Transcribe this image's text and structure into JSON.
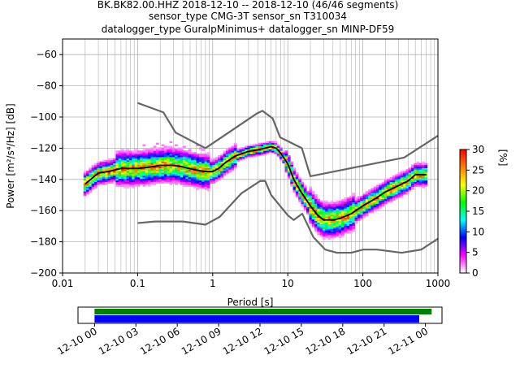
{
  "title": {
    "line1": "BK.BK82.00.HHZ   2018-12-10 -- 2018-12-10  (46/46 segments)",
    "line2": "sensor_type CMG-3T sensor_sn T310034",
    "line3": "datalogger_type GuralpMinimus+ datalogger_sn MINP-DF59"
  },
  "chart_data": [
    {
      "type": "heatmap",
      "xlabel": "Period [s]",
      "ylabel": "Power [m²/s⁴/Hz] [dB]",
      "xscale": "log",
      "xlim": [
        0.01,
        1000
      ],
      "ylim": [
        -200,
        -50
      ],
      "xtick_labels": [
        "0.01",
        "0.1",
        "1",
        "10",
        "100",
        "1000"
      ],
      "ytick_values": [
        -200,
        -180,
        -160,
        -140,
        -120,
        -100,
        -80,
        -60
      ],
      "grid": true,
      "colorbar": {
        "label": "[%]",
        "range": [
          0,
          30
        ],
        "tick_values": [
          0,
          5,
          10,
          15,
          20,
          25,
          30
        ],
        "colormap": [
          "#ffffff",
          "#ff00ff",
          "#0000ff",
          "#00ffff",
          "#00ff00",
          "#ffff00",
          "#ff8000",
          "#ff0000"
        ]
      },
      "series": [
        {
          "role": "mean",
          "color": "#000000",
          "points": [
            [
              0.02,
              -143
            ],
            [
              0.025,
              -139
            ],
            [
              0.03,
              -136
            ],
            [
              0.04,
              -135
            ],
            [
              0.06,
              -133
            ],
            [
              0.08,
              -133
            ],
            [
              0.1,
              -133
            ],
            [
              0.15,
              -132
            ],
            [
              0.2,
              -131
            ],
            [
              0.3,
              -131
            ],
            [
              0.4,
              -132
            ],
            [
              0.6,
              -134
            ],
            [
              0.8,
              -135
            ],
            [
              1.0,
              -135
            ],
            [
              1.2,
              -133
            ],
            [
              1.5,
              -129
            ],
            [
              2,
              -125
            ],
            [
              3,
              -122
            ],
            [
              4,
              -121
            ],
            [
              5,
              -120
            ],
            [
              6,
              -119
            ],
            [
              7,
              -120
            ],
            [
              8,
              -123
            ],
            [
              10,
              -130
            ],
            [
              12,
              -140
            ],
            [
              15,
              -148
            ],
            [
              20,
              -157
            ],
            [
              25,
              -163
            ],
            [
              30,
              -166
            ],
            [
              40,
              -166
            ],
            [
              50,
              -165
            ],
            [
              70,
              -162
            ],
            [
              100,
              -157
            ],
            [
              150,
              -152
            ],
            [
              200,
              -148
            ],
            [
              300,
              -144
            ],
            [
              400,
              -141
            ],
            [
              500,
              -137
            ],
            [
              700,
              -137
            ]
          ]
        },
        {
          "role": "upper-noise-model",
          "color": "#666666",
          "points": [
            [
              0.1,
              -91
            ],
            [
              0.22,
              -97
            ],
            [
              0.32,
              -110
            ],
            [
              0.8,
              -120
            ],
            [
              3.8,
              -98
            ],
            [
              4.6,
              -96
            ],
            [
              6.3,
              -101
            ],
            [
              7.9,
              -113
            ],
            [
              15.4,
              -120
            ],
            [
              20,
              -138
            ],
            [
              354.8,
              -126
            ],
            [
              1000,
              -112
            ]
          ]
        },
        {
          "role": "lower-noise-model",
          "color": "#666666",
          "points": [
            [
              0.1,
              -168
            ],
            [
              0.17,
              -167
            ],
            [
              0.4,
              -167
            ],
            [
              0.8,
              -169
            ],
            [
              1.24,
              -164
            ],
            [
              2.4,
              -149
            ],
            [
              4.3,
              -141
            ],
            [
              5,
              -141
            ],
            [
              6,
              -150
            ],
            [
              10,
              -163
            ],
            [
              12,
              -166
            ],
            [
              15.6,
              -162
            ],
            [
              21.9,
              -177
            ],
            [
              31.6,
              -185
            ],
            [
              45,
              -187
            ],
            [
              70,
              -187
            ],
            [
              101,
              -185
            ],
            [
              154,
              -185
            ],
            [
              328,
              -187
            ],
            [
              600,
              -185
            ],
            [
              1000,
              -178
            ]
          ]
        }
      ]
    },
    {
      "type": "bar",
      "role": "data-availability",
      "xlim_labels": [
        "12-10 00",
        "12-11 00"
      ],
      "tick_labels": [
        "12-10 00",
        "12-10 03",
        "12-10 06",
        "12-10 09",
        "12-10 12",
        "12-10 15",
        "12-10 18",
        "12-10 21",
        "12-11 00"
      ],
      "tick_hours": [
        0,
        3,
        6,
        9,
        12,
        15,
        18,
        21,
        24
      ],
      "view_hours": [
        -1.2,
        25.2
      ],
      "bars": [
        {
          "color": "#008000",
          "start_hour": 0,
          "end_hour": 24.45
        },
        {
          "color": "#0000ff",
          "start_hour": 0,
          "end_hour": 23.55
        }
      ]
    }
  ]
}
